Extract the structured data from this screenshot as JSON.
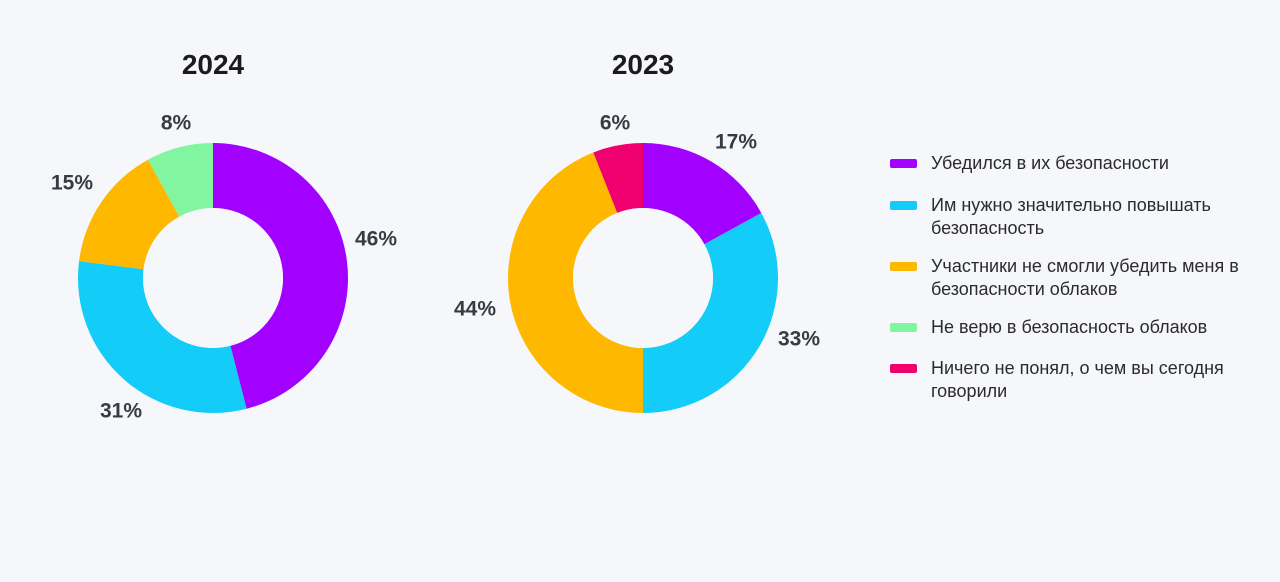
{
  "legend": [
    "Убедился в их безопасности",
    "Им нужно значительно повышать безопасность",
    "Участники не смогли убедить меня в безопасности облаков",
    "Не верю в безопасность облаков",
    "Ничего не понял, о чем вы сегодня говорили"
  ],
  "colors": [
    "#a200ff",
    "#14ccf8",
    "#ffb800",
    "#82f5a0",
    "#f0006e"
  ],
  "chart_data": [
    {
      "type": "pie",
      "title": "2024",
      "categories": [
        "Убедился в их безопасности",
        "Им нужно значительно повышать безопасность",
        "Участники не смогли убедить меня в безопасности облаков",
        "Не верю в безопасность облаков"
      ],
      "values": [
        46,
        31,
        15,
        8
      ],
      "labels": [
        "46%",
        "31%",
        "15%",
        "8%"
      ],
      "color_index": [
        0,
        1,
        2,
        3
      ]
    },
    {
      "type": "pie",
      "title": "2023",
      "categories": [
        "Убедился в их безопасности",
        "Им нужно значительно повышать безопасность",
        "Участники не смогли убедить меня в безопасности облаков",
        "Ничего не понял, о чем вы сегодня говорили"
      ],
      "values": [
        17,
        33,
        44,
        6
      ],
      "labels": [
        "17%",
        "33%",
        "44%",
        "6%"
      ],
      "color_index": [
        0,
        1,
        2,
        4
      ]
    }
  ]
}
